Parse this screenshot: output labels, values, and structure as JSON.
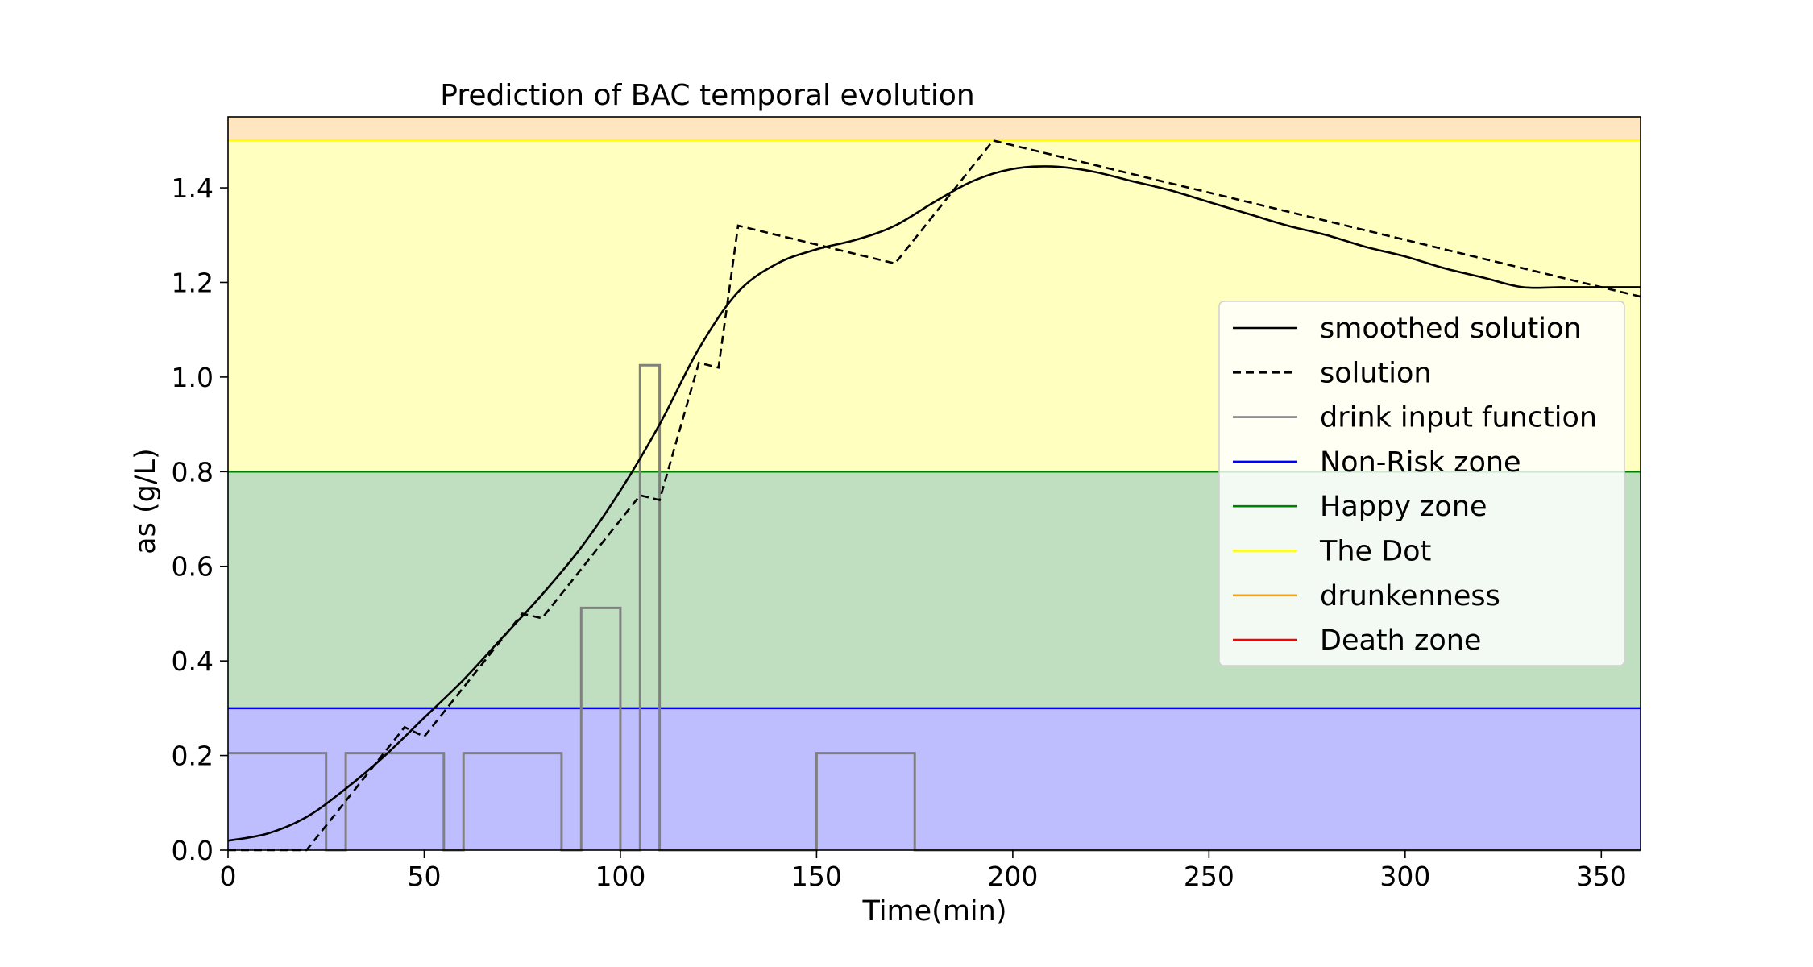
{
  "chart_data": {
    "type": "line",
    "title": "Prediction of BAC temporal evolution",
    "xlabel": "Time(min)",
    "ylabel": "as (g/L)",
    "xlim": [
      0,
      360
    ],
    "ylim": [
      0,
      1.55
    ],
    "xticks": [
      0,
      50,
      100,
      150,
      200,
      250,
      300,
      350
    ],
    "yticks": [
      0.0,
      0.2,
      0.4,
      0.6,
      0.8,
      1.0,
      1.2,
      1.4
    ],
    "ytick_labels": [
      "0.0",
      "0.2",
      "0.4",
      "0.6",
      "0.8",
      "1.0",
      "1.2",
      "1.4"
    ],
    "legend_position": "center-right",
    "zones": [
      {
        "name": "Non-Risk zone",
        "from": 0,
        "to": 0.3,
        "line": 0.3,
        "line_color": "#0000ff",
        "fill_color": "#bebeff"
      },
      {
        "name": "Happy zone",
        "from": 0.3,
        "to": 0.8,
        "line": 0.8,
        "line_color": "#008000",
        "fill_color": "#c0dfc0"
      },
      {
        "name": "The Dot",
        "from": 0.8,
        "to": 1.5,
        "line": 1.5,
        "line_color": "#ffff00",
        "fill_color": "#ffffc0"
      },
      {
        "name": "drunkenness",
        "from": 1.5,
        "to": 1.55,
        "line": null,
        "line_color": "#ffa500",
        "fill_color": "#ffe5c0"
      },
      {
        "name": "Death zone",
        "from": null,
        "to": null,
        "line": null,
        "line_color": "#ff0000",
        "fill_color": null
      }
    ],
    "series": [
      {
        "name": "smoothed solution",
        "color": "#000000",
        "style": "solid",
        "x": [
          0,
          10,
          20,
          30,
          40,
          50,
          60,
          70,
          80,
          90,
          100,
          110,
          120,
          130,
          140,
          150,
          160,
          170,
          180,
          190,
          200,
          210,
          220,
          230,
          240,
          250,
          260,
          270,
          280,
          290,
          300,
          310,
          320,
          330,
          340,
          350,
          360
        ],
        "y": [
          0.02,
          0.035,
          0.07,
          0.13,
          0.2,
          0.28,
          0.36,
          0.45,
          0.54,
          0.64,
          0.76,
          0.9,
          1.06,
          1.18,
          1.24,
          1.27,
          1.29,
          1.32,
          1.37,
          1.415,
          1.44,
          1.445,
          1.435,
          1.415,
          1.395,
          1.37,
          1.345,
          1.32,
          1.3,
          1.275,
          1.255,
          1.23,
          1.21,
          1.19,
          1.19,
          1.19,
          1.19
        ]
      },
      {
        "name": "solution",
        "color": "#000000",
        "style": "dashed",
        "x": [
          0,
          20,
          45,
          50,
          75,
          80,
          105,
          110,
          120,
          125,
          130,
          170,
          195,
          360
        ],
        "y": [
          0,
          0,
          0.26,
          0.24,
          0.5,
          0.49,
          0.75,
          0.74,
          1.03,
          1.02,
          1.32,
          1.24,
          1.5,
          1.17
        ]
      },
      {
        "name": "drink input function",
        "color": "#808080",
        "style": "solid",
        "x": [
          0,
          25,
          25,
          30,
          30,
          55,
          55,
          60,
          60,
          85,
          85,
          90,
          90,
          100,
          100,
          105,
          105,
          110,
          110,
          150,
          150,
          175,
          175,
          360
        ],
        "y": [
          0.205,
          0.205,
          0,
          0,
          0.205,
          0.205,
          0,
          0,
          0.205,
          0.205,
          0,
          0,
          0.512,
          0.512,
          0,
          0,
          1.025,
          1.025,
          0,
          0,
          0.205,
          0.205,
          0,
          0
        ]
      }
    ]
  }
}
